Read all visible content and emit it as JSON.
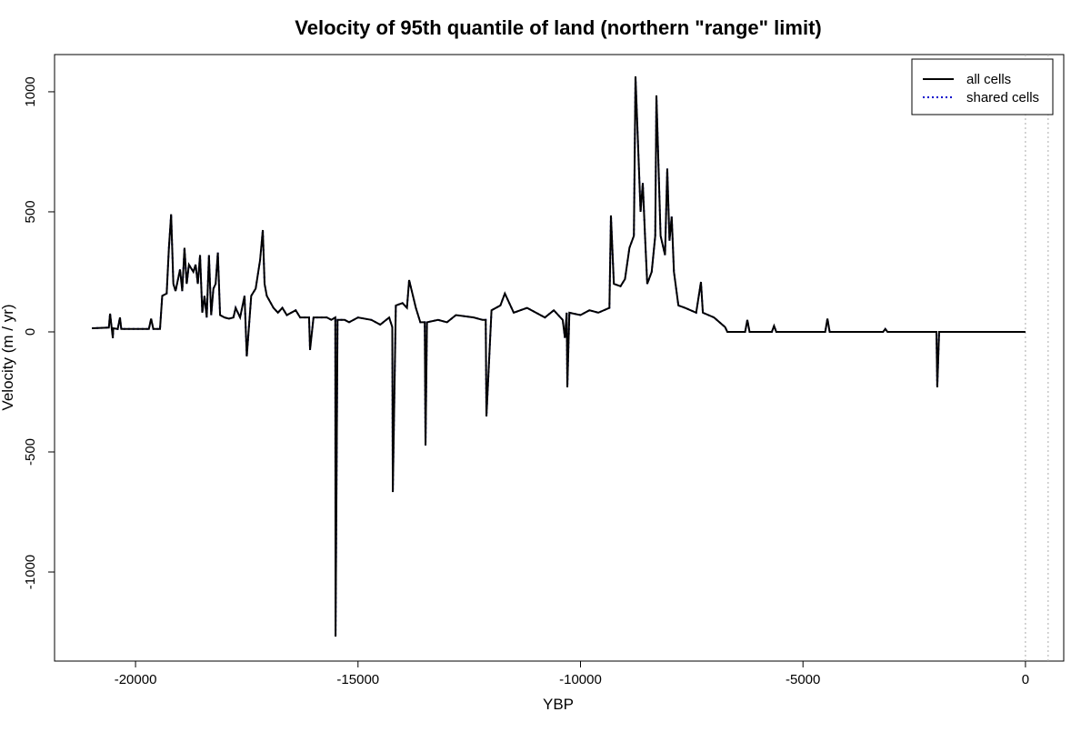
{
  "chart_data": {
    "type": "line",
    "title": "Velocity of 95th quantile of land (northern \"range\" limit)",
    "x_label": "YBP",
    "y_label": "Velocity (m / yr)",
    "x": [
      -20980,
      -20600,
      -20572,
      -20510,
      -20500,
      -20400,
      -20350,
      -20320,
      -19700,
      -19650,
      -19600,
      -19450,
      -19400,
      -19300,
      -19250,
      -19200,
      -19150,
      -19100,
      -19000,
      -18950,
      -18900,
      -18850,
      -18800,
      -18700,
      -18650,
      -18600,
      -18550,
      -18500,
      -18450,
      -18400,
      -18350,
      -18300,
      -18250,
      -18200,
      -18150,
      -18100,
      -18000,
      -17900,
      -17800,
      -17750,
      -17650,
      -17550,
      -17500,
      -17400,
      -17300,
      -17200,
      -17140,
      -17100,
      -17050,
      -16900,
      -16800,
      -16700,
      -16600,
      -16400,
      -16300,
      -16100,
      -16078,
      -16000,
      -15700,
      -15600,
      -15510,
      -15505,
      -15460,
      -15300,
      -15200,
      -15000,
      -14700,
      -14500,
      -14300,
      -14230,
      -14218,
      -14150,
      -14000,
      -13900,
      -13851,
      -13700,
      -13600,
      -13500,
      -13483,
      -13450,
      -13200,
      -13000,
      -12800,
      -12400,
      -12200,
      -12130,
      -12114,
      -12000,
      -11800,
      -11700,
      -11500,
      -11200,
      -11000,
      -10800,
      -10600,
      -10400,
      -10350,
      -10310,
      -10296,
      -10250,
      -10000,
      -9800,
      -9600,
      -9350,
      -9316,
      -9250,
      -9100,
      -9000,
      -8900,
      -8800,
      -8764,
      -8650,
      -8600,
      -8550,
      -8500,
      -8400,
      -8320,
      -8294,
      -8200,
      -8100,
      -8050,
      -8000,
      -7950,
      -7900,
      -7800,
      -7650,
      -7400,
      -7293,
      -7250,
      -7000,
      -6750,
      -6700,
      -6300,
      -6250,
      -6200,
      -5700,
      -5650,
      -5600,
      -4500,
      -4450,
      -4400,
      -3200,
      -3150,
      -3100,
      -2000,
      -1982,
      -1940,
      0
    ],
    "series": [
      {
        "name": "all cells",
        "color": "#000000",
        "style": "solid",
        "values": [
          15,
          18,
          76,
          -26,
          15,
          12,
          60,
          12,
          12,
          55,
          12,
          12,
          150,
          160,
          350,
          490,
          200,
          170,
          260,
          170,
          350,
          200,
          280,
          250,
          280,
          200,
          320,
          80,
          150,
          60,
          320,
          70,
          180,
          200,
          330,
          70,
          60,
          55,
          60,
          100,
          60,
          150,
          -102,
          150,
          180,
          300,
          424,
          200,
          150,
          100,
          80,
          100,
          70,
          90,
          60,
          60,
          -75,
          60,
          60,
          50,
          60,
          -1269,
          50,
          50,
          40,
          60,
          50,
          30,
          60,
          20,
          -667,
          110,
          120,
          100,
          216,
          100,
          40,
          40,
          -473,
          40,
          50,
          40,
          70,
          60,
          50,
          50,
          -352,
          90,
          110,
          160,
          80,
          100,
          80,
          60,
          90,
          50,
          -25,
          80,
          -231,
          80,
          70,
          90,
          80,
          100,
          485,
          200,
          190,
          220,
          350,
          400,
          1064,
          500,
          620,
          400,
          200,
          250,
          400,
          985,
          400,
          320,
          680,
          380,
          480,
          250,
          110,
          100,
          80,
          208,
          80,
          60,
          20,
          0,
          0,
          50,
          0,
          0,
          25,
          0,
          0,
          55,
          0,
          0,
          12,
          0,
          0,
          -231,
          0,
          0
        ]
      },
      {
        "name": "shared cells",
        "color": "#0000cc",
        "style": "dotted",
        "values": [
          15,
          18,
          76,
          -26,
          15,
          12,
          60,
          12,
          12,
          55,
          12,
          12,
          150,
          160,
          350,
          490,
          200,
          170,
          260,
          170,
          350,
          200,
          280,
          250,
          280,
          200,
          320,
          80,
          150,
          60,
          320,
          70,
          180,
          200,
          330,
          70,
          60,
          55,
          60,
          100,
          60,
          150,
          -102,
          150,
          180,
          300,
          424,
          200,
          150,
          100,
          80,
          100,
          70,
          90,
          60,
          60,
          -75,
          60,
          60,
          50,
          60,
          -1269,
          50,
          50,
          40,
          60,
          50,
          30,
          60,
          20,
          -667,
          110,
          120,
          100,
          216,
          100,
          40,
          40,
          -473,
          40,
          50,
          40,
          70,
          60,
          50,
          50,
          -352,
          90,
          110,
          160,
          80,
          100,
          80,
          60,
          90,
          50,
          -25,
          80,
          -231,
          80,
          70,
          90,
          80,
          100,
          485,
          200,
          190,
          220,
          350,
          400,
          1064,
          500,
          620,
          400,
          200,
          250,
          400,
          985,
          400,
          320,
          680,
          380,
          480,
          250,
          110,
          100,
          80,
          208,
          80,
          60,
          20,
          0,
          0,
          50,
          0,
          0,
          25,
          0,
          0,
          55,
          0,
          0,
          12,
          0,
          0,
          -231,
          0,
          0
        ]
      }
    ],
    "vlines": [
      0,
      510
    ],
    "xlim": [
      -21820,
      860
    ],
    "ylim": [
      -1371,
      1155
    ],
    "xticks": [
      -20000,
      -15000,
      -10000,
      -5000,
      0
    ],
    "yticks": [
      -1000,
      -500,
      0,
      500,
      1000
    ],
    "legend": "topright"
  }
}
